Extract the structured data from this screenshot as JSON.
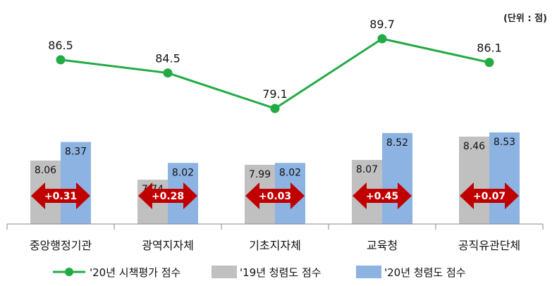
{
  "unit_label": "(단위 : 점)",
  "chart_data": {
    "type": "bar",
    "categories": [
      "중앙행정기관",
      "광역지자체",
      "기초지자체",
      "교육청",
      "공직유관단체"
    ],
    "series": [
      {
        "name": "'19년 청렴도 점수",
        "kind": "bar",
        "values": [
          8.06,
          7.74,
          7.99,
          8.07,
          8.46
        ],
        "labels": [
          "8.06",
          "7.74",
          "7.99",
          "8.07",
          "8.46"
        ],
        "color": "#c0c0c0"
      },
      {
        "name": "'20년 청렴도 점수",
        "kind": "bar",
        "values": [
          8.37,
          8.02,
          8.02,
          8.52,
          8.53
        ],
        "labels": [
          "8.37",
          "8.02",
          "8.02",
          "8.52",
          "8.53"
        ],
        "color": "#8db3e2"
      },
      {
        "name": "'20년 시책평가 점수",
        "kind": "line",
        "values": [
          86.5,
          84.5,
          79.1,
          89.7,
          86.1
        ],
        "labels": [
          "86.5",
          "84.5",
          "79.1",
          "89.7",
          "86.1"
        ],
        "color": "#22aa44"
      }
    ],
    "differences": {
      "labels": [
        "+0.31",
        "+0.28",
        "+0.03",
        "+0.45",
        "+0.07"
      ],
      "color": "#c00000"
    },
    "legend": {
      "position": "bottom"
    }
  }
}
